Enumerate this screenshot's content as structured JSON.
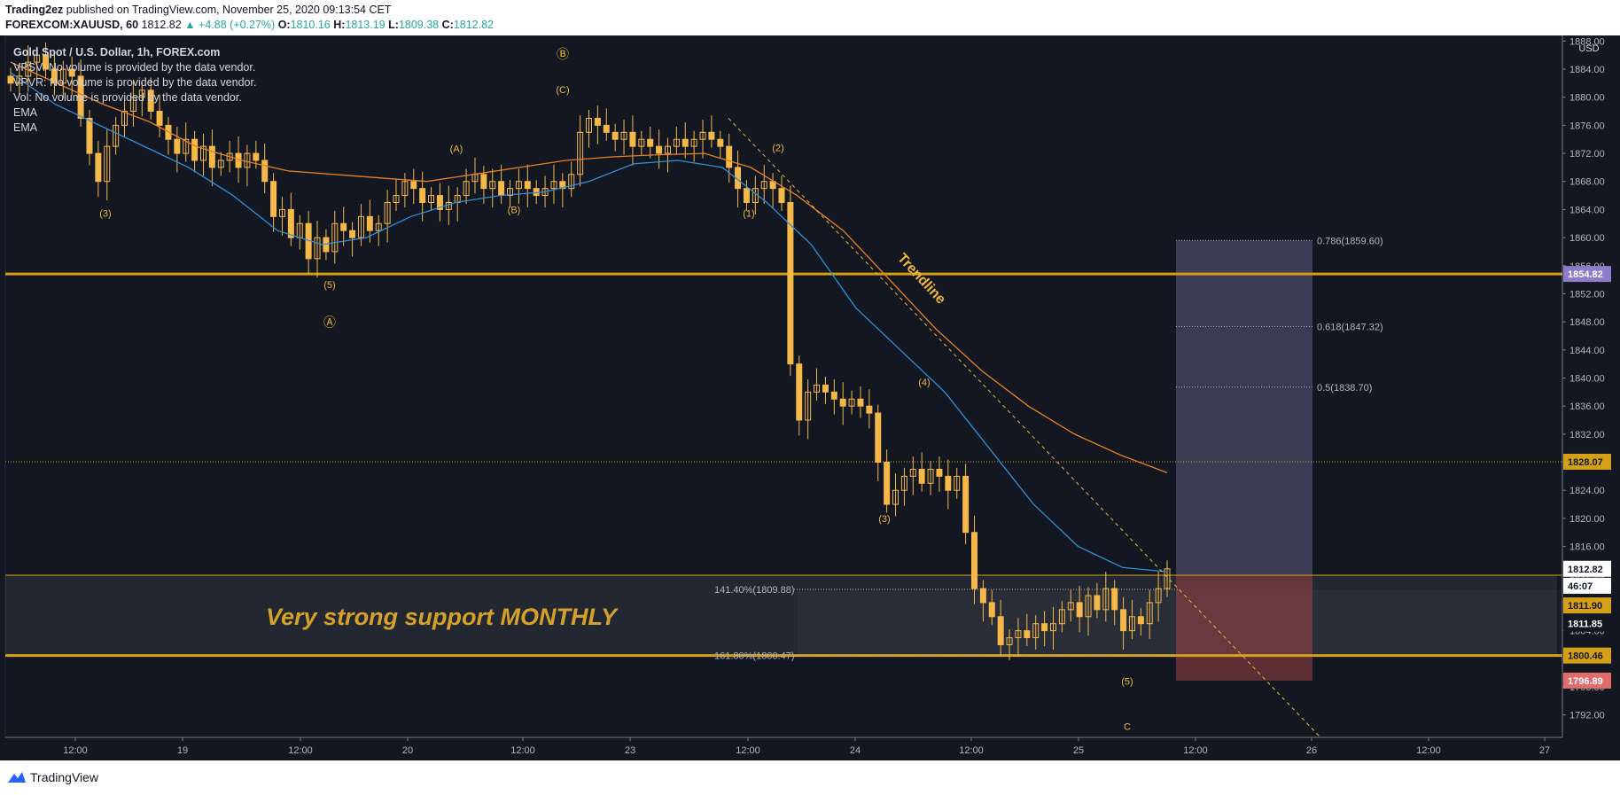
{
  "header": {
    "author": "Trading2ez",
    "published_text": "published on TradingView.com, November 25, 2020 09:13:54 CET",
    "symbol": "FOREXCOM:XAUUSD, 60",
    "price": "1812.82",
    "change": "▲ +4.88 (+0.27%)",
    "o_label": "O:",
    "o": "1810.16",
    "h_label": "H:",
    "h": "1813.19",
    "l_label": "L:",
    "l": "1809.38",
    "c_label": "C:",
    "c": "1812.82"
  },
  "legend": {
    "title": "Gold Spot / U.S. Dollar, 1h, FOREX.com",
    "lines": [
      "VPSV: No volume is provided by the data vendor.",
      "VPVR: No volume is provided by the data vendor.",
      "Vol: No volume is provided by the data vendor.",
      "EMA",
      "EMA"
    ]
  },
  "footer": {
    "brand": "TradingView"
  },
  "colors": {
    "background": "#131722",
    "candle": "#f5b849",
    "ema_fast": "#2f8fd8",
    "ema_slow": "#e87f24",
    "level": "#d4a017",
    "label_text": "#f0b63a",
    "support_text": "#d4a12a",
    "fib_lavender": "#8b82b6",
    "fib_red": "#a84848",
    "price_tag_purple": "#8d7dc9",
    "price_tag_red": "#e06c6c"
  },
  "chart_data": {
    "type": "candlestick",
    "currency": "USD",
    "ylim": [
      1788.8,
      1888.8
    ],
    "y_ticks": [
      1792,
      1796,
      1800,
      1804,
      1808,
      1812,
      1816,
      1820,
      1824,
      1828,
      1832,
      1836,
      1840,
      1844,
      1848,
      1852,
      1856,
      1860,
      1864,
      1868,
      1872,
      1876,
      1880,
      1884,
      1888
    ],
    "x_ticks": [
      "12:00",
      "19",
      "12:00",
      "20",
      "12:00",
      "23",
      "12:00",
      "24",
      "12:00",
      "25",
      "12:00",
      "26",
      "12:00",
      "27"
    ],
    "closes": [
      1882,
      1883,
      1885,
      1886,
      1884,
      1882,
      1884,
      1883,
      1877,
      1872,
      1868,
      1873,
      1876,
      1878,
      1880,
      1881,
      1878,
      1876,
      1874,
      1872,
      1874,
      1871,
      1873,
      1870,
      1871,
      1872,
      1870,
      1872,
      1871,
      1868,
      1863,
      1864,
      1860,
      1862,
      1857,
      1860,
      1858,
      1862,
      1861,
      1860,
      1863,
      1861,
      1862,
      1865,
      1866,
      1868,
      1867,
      1865,
      1866,
      1864,
      1865,
      1866,
      1868,
      1869,
      1867,
      1868,
      1866,
      1867,
      1868,
      1867,
      1866,
      1867,
      1868,
      1867,
      1869,
      1875,
      1877,
      1876,
      1875,
      1874,
      1875,
      1873,
      1874,
      1873,
      1872,
      1873,
      1874,
      1873,
      1874,
      1875,
      1874,
      1873,
      1870,
      1867,
      1865,
      1867,
      1868,
      1867,
      1865,
      1842,
      1834,
      1838,
      1839,
      1838,
      1837,
      1836,
      1837,
      1836,
      1835,
      1828,
      1822,
      1824,
      1826,
      1827,
      1825,
      1827,
      1826,
      1824,
      1826,
      1818,
      1810,
      1808,
      1806,
      1802,
      1803,
      1804,
      1803,
      1805,
      1804,
      1805,
      1807,
      1808,
      1806,
      1809,
      1807,
      1810,
      1807,
      1804,
      1806,
      1805,
      1808,
      1810,
      1812.82
    ],
    "ema_fast": [
      1883.5,
      1879,
      1876,
      1873,
      1870,
      1866,
      1861,
      1859,
      1860,
      1863,
      1865,
      1866,
      1866.5,
      1868,
      1870.5,
      1871,
      1870,
      1865,
      1859,
      1850,
      1844,
      1838,
      1830,
      1822,
      1816,
      1813,
      1812.4
    ],
    "ema_slow": [
      1885,
      1882,
      1879,
      1876.5,
      1873,
      1871,
      1869.5,
      1869,
      1868.5,
      1868,
      1869,
      1870,
      1871,
      1871.5,
      1871.8,
      1872,
      1870,
      1866,
      1861,
      1854,
      1847,
      1841,
      1836,
      1832,
      1829,
      1826.5
    ],
    "levels": [
      {
        "price": "1854.82",
        "value": 1854.82,
        "style": "solid"
      },
      {
        "price": "1828.07",
        "value": 1828.07,
        "style": "dotted"
      },
      {
        "price": "1811.90",
        "value": 1811.9,
        "style": "thin"
      },
      {
        "price": "1800.46",
        "value": 1800.46,
        "style": "solid"
      }
    ],
    "price_tags": {
      "last": "1812.82",
      "countdown": "46:07",
      "cursor": "1811.85",
      "target": "1796.89"
    },
    "fib_levels": [
      {
        "label": "0.786(1859.60)",
        "value": 1859.6
      },
      {
        "label": "0.618(1847.32)",
        "value": 1847.32
      },
      {
        "label": "0.5(1838.70)",
        "value": 1838.7
      },
      {
        "label": "141.40%(1809.88)",
        "value": 1809.88
      },
      {
        "label": "161.80%(1800.47)",
        "value": 1800.47
      }
    ],
    "support_zone": {
      "label": "Very strong support MONTHLY",
      "top": 1811.9,
      "bottom": 1800.46
    },
    "trendline_label": "Trendline",
    "wave_labels": [
      "(3)",
      "(5)",
      "Ⓐ",
      "(A)",
      "(B)",
      "Ⓑ",
      "(C)",
      "(1)",
      "(2)",
      "(3)",
      "(4)",
      "(5)",
      "C"
    ]
  }
}
